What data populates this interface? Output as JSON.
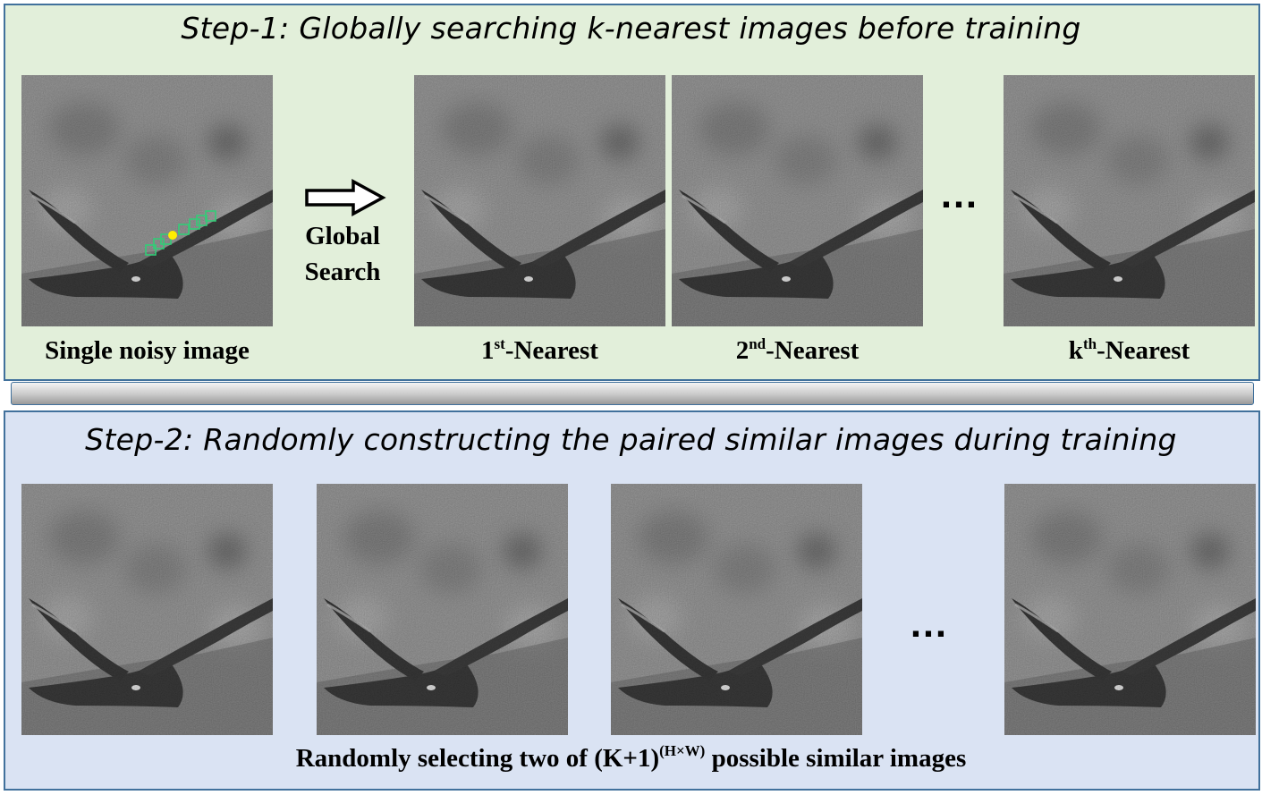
{
  "step1": {
    "title": "Step-1:  Globally searching k-nearest images before training",
    "source_label": "Single noisy image",
    "arrow_line1": "Global",
    "arrow_line2": "Search",
    "neighbors": [
      {
        "prefix": "1",
        "sup": "st",
        "suffix": "-Nearest"
      },
      {
        "prefix": "2",
        "sup": "nd",
        "suffix": "-Nearest"
      },
      {
        "prefix": "k",
        "sup": "th",
        "suffix": "-Nearest"
      }
    ],
    "ellipsis": "…"
  },
  "step2": {
    "title": "Step-2:  Randomly constructing the paired similar images during training",
    "caption_before": "Randomly selecting two of (K+1)",
    "caption_sup": "(H×W)",
    "caption_after": " possible similar images",
    "ellipsis": "…"
  },
  "colors": {
    "step1_bg": "#e2efda",
    "step2_bg": "#dae3f3",
    "border": "#41719c",
    "patch_box": "#33cc77",
    "patch_center": "#ffee00"
  }
}
